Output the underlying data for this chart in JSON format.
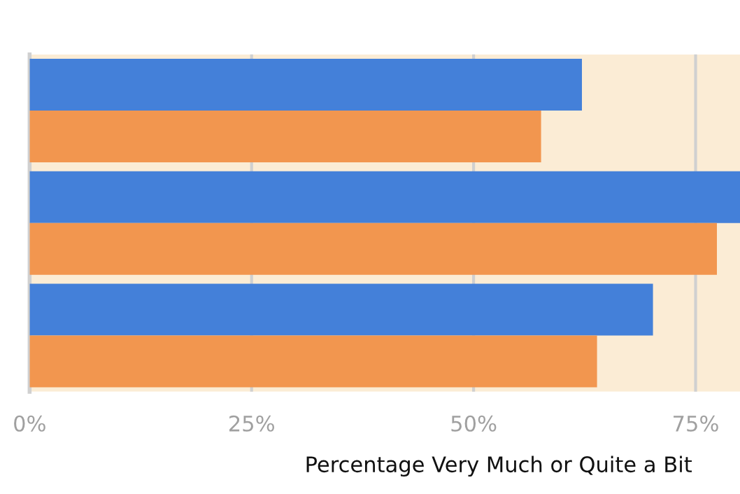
{
  "chart_data": {
    "type": "bar",
    "orientation": "horizontal",
    "xlabel": "Percentage Very Much or Quite a Bit",
    "categories": [
      null,
      null,
      null
    ],
    "series": [
      {
        "color": "#4480d9",
        "values": [
          62.2,
          80,
          70.2
        ]
      },
      {
        "color": "#f2964f",
        "values": [
          57.6,
          77.4,
          63.9
        ]
      }
    ],
    "xlim": [
      0,
      80
    ],
    "xticks": [
      {
        "value": 0,
        "label": "0%"
      },
      {
        "value": 25,
        "label": "25%"
      },
      {
        "value": 50,
        "label": "50%"
      },
      {
        "value": 75,
        "label": "75%"
      }
    ],
    "bands": [
      {
        "axis": "x",
        "from": 0,
        "to": 80,
        "color": "#fbecd5"
      }
    ],
    "grid": "x"
  }
}
